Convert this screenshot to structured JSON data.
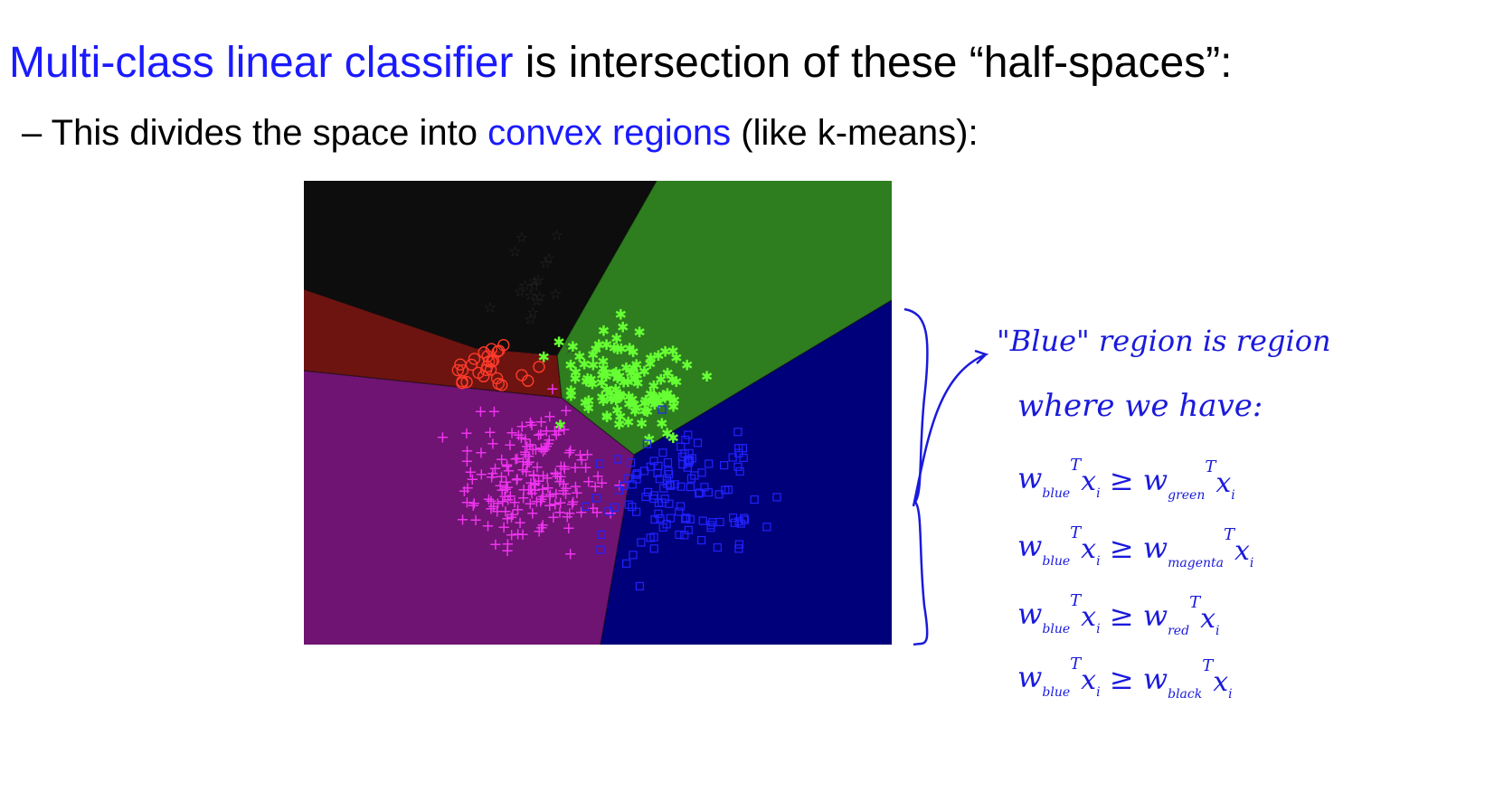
{
  "headline": {
    "highlight": "Multi-class linear classifier",
    "rest": " is intersection of these “half-spaces”:"
  },
  "bullet": {
    "dash": "–",
    "lead": " This divides the space into ",
    "highlight": "convex regions",
    "rest": " (like k-means):"
  },
  "handwritten": {
    "line1": "\"Blue\" region is region",
    "line2": "where we have:",
    "ineq": [
      {
        "lhs": "w",
        "lsub": "blue",
        "sup": "T",
        "x": "x",
        "xsub": "i",
        "op": "≥",
        "rhs": "w",
        "rsub": "green"
      },
      {
        "lhs": "w",
        "lsub": "blue",
        "sup": "T",
        "x": "x",
        "xsub": "i",
        "op": "≥",
        "rhs": "w",
        "rsub": "magenta"
      },
      {
        "lhs": "w",
        "lsub": "blue",
        "sup": "T",
        "x": "x",
        "xsub": "i",
        "op": "≥",
        "rhs": "w",
        "rsub": "red"
      },
      {
        "lhs": "w",
        "lsub": "blue",
        "sup": "T",
        "x": "x",
        "xsub": "i",
        "op": "≥",
        "rhs": "w",
        "rsub": "black"
      }
    ]
  },
  "colors": {
    "highlight": "#1a1aff",
    "region_black": "#0d0d0d",
    "region_green": "#2e7d1f",
    "region_red": "#6e1410",
    "region_magenta": "#6f1472",
    "region_blue": "#00007a",
    "mark_red": "#ff3b2a",
    "mark_green": "#66ff33",
    "mark_magenta": "#ee33ee",
    "mark_blue": "#2222ff",
    "mark_black": "#2a2a2a",
    "ink": "#1a1adb"
  }
}
